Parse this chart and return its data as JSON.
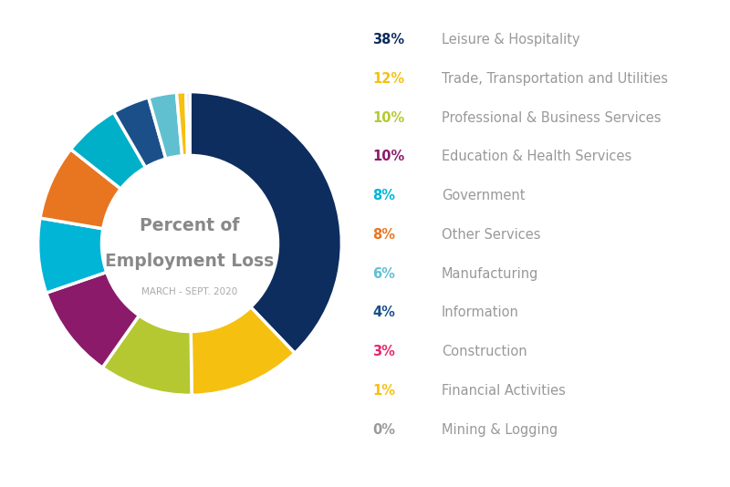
{
  "title_line1": "Percent of",
  "title_line2": "Employment Loss",
  "subtitle": "MARCH - SEPT. 2020",
  "categories": [
    "Leisure & Hospitality",
    "Trade, Transportation and Utilities",
    "Professional & Business Services",
    "Education & Health Services",
    "Government",
    "Other Services",
    "Manufacturing",
    "Information",
    "Construction",
    "Financial Activities",
    "Mining & Logging"
  ],
  "values": [
    38,
    12,
    10,
    10,
    8,
    8,
    6,
    4,
    3,
    1,
    0.4
  ],
  "percentages": [
    "38%",
    "12%",
    "10%",
    "10%",
    "8%",
    "8%",
    "6%",
    "4%",
    "3%",
    "1%",
    "0%"
  ],
  "slice_colors": [
    "#0d2d5e",
    "#f5c010",
    "#b5c832",
    "#8b1a6b",
    "#00b5d5",
    "#e87520",
    "#00b0c8",
    "#1a4f8a",
    "#60c0d0",
    "#f5c010",
    "#c8d8d0"
  ],
  "pct_colors": [
    "#0d2d5e",
    "#f5c010",
    "#b5c832",
    "#8b1a6b",
    "#00b5d5",
    "#e87520",
    "#60c0d0",
    "#1a4f8a",
    "#e8266e",
    "#f5c010",
    "#999999"
  ],
  "background_color": "#ffffff",
  "center_title_color": "#999999",
  "subtitle_color": "#bbbbbb",
  "label_color": "#999999"
}
